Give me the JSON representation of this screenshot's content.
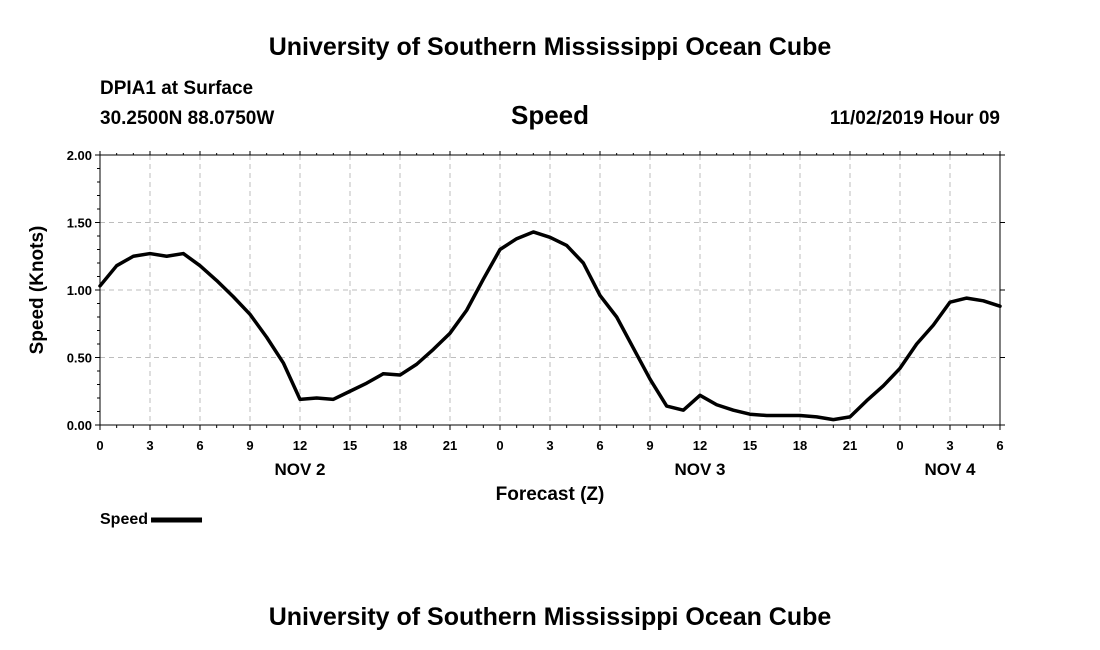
{
  "header": {
    "top_title": "University of Southern Mississippi Ocean Cube",
    "bottom_title": "University of Southern Mississippi Ocean Cube",
    "station": "DPIA1 at Surface",
    "coordinates": "30.2500N 88.0750W",
    "timestamp": "11/02/2019 Hour 09"
  },
  "chart_data": {
    "type": "line",
    "title": "Speed",
    "xlabel": "Forecast (Z)",
    "ylabel": "Speed (Knots)",
    "xlim": [
      0,
      54
    ],
    "ylim": [
      0,
      2
    ],
    "y_ticks": [
      "0.00",
      "0.50",
      "1.00",
      "1.50",
      "2.00"
    ],
    "x_tick_labels": [
      "0",
      "3",
      "6",
      "9",
      "12",
      "15",
      "18",
      "21",
      "0",
      "3",
      "6",
      "9",
      "12",
      "15",
      "18",
      "21",
      "0",
      "3",
      "6"
    ],
    "day_labels": [
      {
        "label": "NOV 2",
        "hour": 12
      },
      {
        "label": "NOV 3",
        "hour": 36
      },
      {
        "label": "NOV 4",
        "hour": 51
      }
    ],
    "grid": true,
    "legend_position": "bottom-left",
    "series": [
      {
        "name": "Speed",
        "color": "#000000",
        "x": [
          0,
          1,
          2,
          3,
          4,
          5,
          6,
          7,
          8,
          9,
          10,
          11,
          12,
          13,
          14,
          15,
          16,
          17,
          18,
          19,
          20,
          21,
          22,
          23,
          24,
          25,
          26,
          27,
          28,
          29,
          30,
          31,
          32,
          33,
          34,
          35,
          36,
          37,
          38,
          39,
          40,
          41,
          42,
          43,
          44,
          45,
          46,
          47,
          48,
          49,
          50,
          51,
          52,
          53,
          54
        ],
        "values": [
          1.03,
          1.18,
          1.25,
          1.27,
          1.25,
          1.27,
          1.18,
          1.07,
          0.95,
          0.82,
          0.65,
          0.46,
          0.19,
          0.2,
          0.19,
          0.25,
          0.31,
          0.38,
          0.37,
          0.45,
          0.56,
          0.68,
          0.85,
          1.08,
          1.3,
          1.38,
          1.43,
          1.39,
          1.33,
          1.2,
          0.96,
          0.8,
          0.57,
          0.34,
          0.14,
          0.11,
          0.22,
          0.15,
          0.11,
          0.08,
          0.07,
          0.07,
          0.07,
          0.06,
          0.04,
          0.06,
          0.18,
          0.29,
          0.42,
          0.6,
          0.74,
          0.91,
          0.94,
          0.92,
          0.88
        ]
      }
    ]
  }
}
